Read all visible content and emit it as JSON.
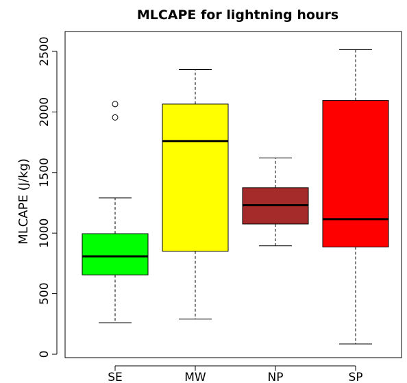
{
  "chart_data": {
    "type": "boxplot",
    "title": "MLCAPE for lightning hours",
    "xlabel": "",
    "ylabel": "MLCAPE (J/kg)",
    "ylim": [
      0,
      2500
    ],
    "yticks": [
      "0",
      "500",
      "1000",
      "1500",
      "2000",
      "2500"
    ],
    "grid": false,
    "categories": [
      "SE",
      "MW",
      "NP",
      "SP"
    ],
    "boxes": [
      {
        "category": "SE",
        "whisker_low": 260,
        "q1": 655,
        "median": 808,
        "q3": 995,
        "whisker_high": 1290,
        "outliers": [
          1955,
          2065
        ],
        "color": "#00ff00"
      },
      {
        "category": "MW",
        "whisker_low": 290,
        "q1": 850,
        "median": 1760,
        "q3": 2065,
        "whisker_high": 2350,
        "outliers": [],
        "color": "#ffff00"
      },
      {
        "category": "NP",
        "whisker_low": 895,
        "q1": 1075,
        "median": 1230,
        "q3": 1375,
        "whisker_high": 1620,
        "outliers": [],
        "color": "#a52a2a"
      },
      {
        "category": "SP",
        "whisker_low": 85,
        "q1": 885,
        "median": 1115,
        "q3": 2095,
        "whisker_high": 2515,
        "outliers": [],
        "color": "#ff0000"
      }
    ]
  }
}
